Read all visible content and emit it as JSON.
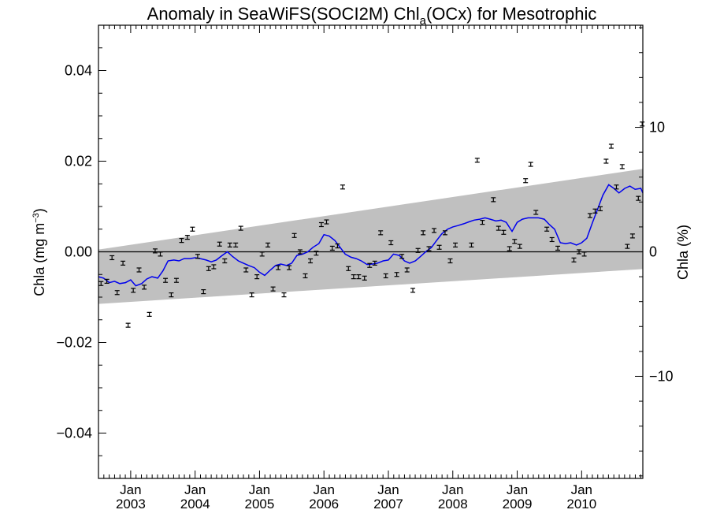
{
  "chart_data": {
    "type": "line",
    "title": "Anomaly in SeaWiFS(SOCI2M) Chl",
    "title_subscript": "a",
    "title_suffix": "(OCx) for Mesotrophic",
    "ylabel_left": "Chla (mg m",
    "ylabel_left_sup": "−3",
    "ylabel_left_close": ")",
    "ylabel_right": "Chla (%)",
    "xlim": [
      2002.5,
      2010.95
    ],
    "ylim": [
      -0.05,
      0.05
    ],
    "ylim_right_pct": [
      -18.2,
      18.2
    ],
    "x_month_labels": [
      "Jan",
      "Jan",
      "Jan",
      "Jan",
      "Jan",
      "Jan",
      "Jan",
      "Jan"
    ],
    "x_year_labels": [
      "2003",
      "2004",
      "2005",
      "2006",
      "2007",
      "2008",
      "2009",
      "2010"
    ],
    "x_label_positions": [
      2003,
      2004,
      2005,
      2006,
      2007,
      2008,
      2009,
      2010
    ],
    "y_ticks_left": [
      -0.04,
      -0.02,
      0.0,
      0.02,
      0.04
    ],
    "y_tick_labels_left": [
      "−0.04",
      "−0.02",
      "0.00",
      "0.02",
      "0.04"
    ],
    "y_ticks_right": [
      -10,
      0,
      10
    ],
    "y_tick_labels_right": [
      "−10",
      "0",
      "10"
    ],
    "colors": {
      "trend": "#0000ee",
      "band": "#c0c0c0",
      "points": "#000000",
      "zero_line": "#000000"
    },
    "band": {
      "x": [
        2002.5,
        2010.95
      ],
      "upper": [
        0.0005,
        0.0183
      ],
      "lower": [
        -0.0115,
        -0.0038
      ]
    },
    "series": [
      {
        "kind": "points",
        "x": [
          2002.54,
          2002.63,
          2002.71,
          2002.79,
          2002.88,
          2002.96,
          2003.04,
          2003.13,
          2003.21,
          2003.29,
          2003.38,
          2003.46,
          2003.54,
          2003.63,
          2003.71,
          2003.79,
          2003.88,
          2003.96,
          2004.04,
          2004.13,
          2004.21,
          2004.29,
          2004.38,
          2004.46,
          2004.54,
          2004.63,
          2004.71,
          2004.79,
          2004.88,
          2004.96,
          2005.04,
          2005.13,
          2005.21,
          2005.29,
          2005.38,
          2005.46,
          2005.54,
          2005.63,
          2005.71,
          2005.79,
          2005.88,
          2005.96,
          2006.04,
          2006.13,
          2006.21,
          2006.29,
          2006.38,
          2006.46,
          2006.54,
          2006.63,
          2006.71,
          2006.79,
          2006.88,
          2006.96,
          2007.04,
          2007.13,
          2007.21,
          2007.29,
          2007.38,
          2007.46,
          2007.54,
          2007.63,
          2007.71,
          2007.79,
          2007.88,
          2007.96,
          2008.04,
          2008.29,
          2008.38,
          2008.46,
          2008.63,
          2008.71,
          2008.79,
          2008.88,
          2008.96,
          2009.04,
          2009.13,
          2009.21,
          2009.29,
          2009.46,
          2009.54,
          2009.63,
          2009.88,
          2009.96,
          2010.04,
          2010.13,
          2010.21,
          2010.29,
          2010.38,
          2010.46,
          2010.54,
          2010.63,
          2010.71,
          2010.79,
          2010.88,
          2010.94
        ],
        "y": [
          -0.007,
          -0.0065,
          -0.0013,
          -0.009,
          -0.0025,
          -0.0162,
          -0.0085,
          -0.004,
          -0.0078,
          -0.0138,
          0.0002,
          -0.0005,
          -0.0063,
          -0.0095,
          -0.0063,
          0.0025,
          0.0032,
          0.005,
          -0.001,
          -0.0088,
          -0.0037,
          -0.0033,
          0.0017,
          -0.002,
          0.0015,
          0.0015,
          0.0052,
          -0.004,
          -0.0095,
          -0.0055,
          -0.0005,
          0.0015,
          -0.0082,
          -0.0035,
          -0.0095,
          -0.0035,
          0.0036,
          0.0,
          -0.0053,
          -0.002,
          -0.0003,
          0.006,
          0.0066,
          0.0008,
          0.0013,
          0.0143,
          -0.0037,
          -0.0055,
          -0.0055,
          -0.0058,
          -0.003,
          -0.0025,
          0.0042,
          -0.0053,
          0.002,
          -0.005,
          -0.001,
          -0.004,
          -0.0085,
          0.0003,
          0.0042,
          0.0007,
          0.0047,
          0.001,
          0.0042,
          -0.002,
          0.0015,
          0.0015,
          0.0202,
          0.0065,
          0.0115,
          0.0052,
          0.0043,
          0.0007,
          0.0023,
          0.0012,
          0.0157,
          0.0193,
          0.0087,
          0.005,
          0.0027,
          0.0008,
          -0.0018,
          0.0,
          -0.0005,
          0.008,
          0.009,
          0.0095,
          0.02,
          0.0233,
          0.0143,
          0.0188,
          0.0012,
          0.0035,
          0.0118,
          0.0282
        ]
      },
      {
        "kind": "line",
        "x": [
          2002.5,
          2002.58,
          2002.67,
          2002.75,
          2002.83,
          2002.92,
          2003.0,
          2003.08,
          2003.17,
          2003.25,
          2003.33,
          2003.42,
          2003.5,
          2003.58,
          2003.67,
          2003.75,
          2003.83,
          2003.92,
          2004.0,
          2004.08,
          2004.17,
          2004.25,
          2004.33,
          2004.42,
          2004.5,
          2004.58,
          2004.67,
          2004.75,
          2004.83,
          2004.92,
          2005.0,
          2005.08,
          2005.17,
          2005.25,
          2005.33,
          2005.42,
          2005.5,
          2005.58,
          2005.67,
          2005.75,
          2005.83,
          2005.92,
          2006.0,
          2006.08,
          2006.17,
          2006.25,
          2006.33,
          2006.42,
          2006.5,
          2006.58,
          2006.67,
          2006.75,
          2006.83,
          2006.92,
          2007.0,
          2007.08,
          2007.17,
          2007.25,
          2007.33,
          2007.42,
          2007.5,
          2007.58,
          2007.67,
          2007.75,
          2007.83,
          2007.92,
          2008.0,
          2008.08,
          2008.17,
          2008.25,
          2008.33,
          2008.42,
          2008.5,
          2008.58,
          2008.67,
          2008.75,
          2008.83,
          2008.92,
          2009.0,
          2009.08,
          2009.17,
          2009.25,
          2009.33,
          2009.42,
          2009.5,
          2009.58,
          2009.67,
          2009.75,
          2009.83,
          2009.92,
          2010.0,
          2010.08,
          2010.17,
          2010.25,
          2010.33,
          2010.42,
          2010.5,
          2010.58,
          2010.67,
          2010.75,
          2010.83,
          2010.92,
          2010.95
        ],
        "y": [
          -0.0055,
          -0.0058,
          -0.0068,
          -0.0065,
          -0.007,
          -0.0068,
          -0.0062,
          -0.0075,
          -0.007,
          -0.006,
          -0.0055,
          -0.0058,
          -0.0042,
          -0.002,
          -0.0018,
          -0.002,
          -0.0015,
          -0.0015,
          -0.0013,
          -0.0015,
          -0.0018,
          -0.0022,
          -0.0018,
          -0.0008,
          0.0,
          -0.001,
          -0.002,
          -0.0025,
          -0.003,
          -0.0035,
          -0.0045,
          -0.0052,
          -0.004,
          -0.003,
          -0.0027,
          -0.003,
          -0.0025,
          -0.0008,
          -0.0005,
          0.0,
          0.001,
          0.0018,
          0.0038,
          0.0035,
          0.0025,
          0.001,
          -0.0005,
          -0.0012,
          -0.0015,
          -0.002,
          -0.0028,
          -0.0027,
          -0.0025,
          -0.002,
          -0.0018,
          -0.0005,
          -0.0008,
          -0.002,
          -0.0025,
          -0.002,
          -0.001,
          0.0,
          0.001,
          0.0025,
          0.004,
          0.005,
          0.0055,
          0.0058,
          0.0062,
          0.0066,
          0.007,
          0.0072,
          0.0075,
          0.0072,
          0.0068,
          0.007,
          0.0065,
          0.0045,
          0.0065,
          0.0072,
          0.0075,
          0.0075,
          0.0075,
          0.0072,
          0.006,
          0.005,
          0.002,
          0.0018,
          0.002,
          0.0015,
          0.002,
          0.003,
          0.0065,
          0.0095,
          0.0125,
          0.0148,
          0.014,
          0.013,
          0.014,
          0.0145,
          0.0138,
          0.014,
          0.013
        ]
      }
    ]
  }
}
